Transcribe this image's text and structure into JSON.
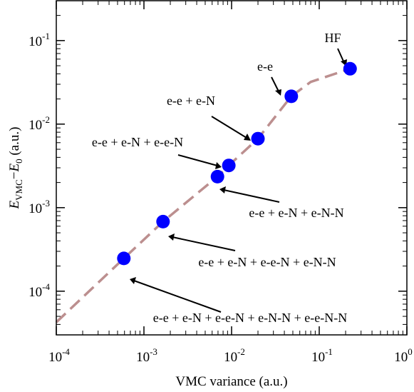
{
  "colors": {
    "marker": "#0000ff",
    "trend": "#bc8f8f",
    "axis": "#000000",
    "background": "#ffffff"
  },
  "chart_data": {
    "type": "scatter",
    "title": "",
    "xlabel": "VMC variance (a.u.)",
    "ylabel": {
      "main": "E",
      "main_sub": "VMC",
      "minus": "−",
      "second": "E",
      "second_sub": "0",
      "units": " (a.u.)"
    },
    "x_scale": "log",
    "y_scale": "log",
    "xlim": [
      0.0001,
      1
    ],
    "ylim": [
      3e-05,
      0.3
    ],
    "grid": false,
    "legend": "none",
    "x_ticks": [
      {
        "base": "10",
        "exp": "-4",
        "value": 0.0001
      },
      {
        "base": "10",
        "exp": "-3",
        "value": 0.001
      },
      {
        "base": "10",
        "exp": "-2",
        "value": 0.01
      },
      {
        "base": "10",
        "exp": "-1",
        "value": 0.1
      },
      {
        "base": "10",
        "exp": "0",
        "value": 1
      }
    ],
    "y_ticks": [
      {
        "base": "10",
        "exp": "-4",
        "value": 0.0001
      },
      {
        "base": "10",
        "exp": "-3",
        "value": 0.001
      },
      {
        "base": "10",
        "exp": "-2",
        "value": 0.01
      },
      {
        "base": "10",
        "exp": "-1",
        "value": 0.1
      }
    ],
    "points": [
      {
        "x": 0.00059,
        "y": 0.000247,
        "label": "e-e + e-N + e-e-N + e-N-N + e-e-N-N"
      },
      {
        "x": 0.00165,
        "y": 0.00068,
        "label": "e-e + e-N + e-e-N + e-N-N"
      },
      {
        "x": 0.0069,
        "y": 0.00235,
        "label": "e-e + e-N + e-N-N"
      },
      {
        "x": 0.0093,
        "y": 0.0032,
        "label": "e-e + e-N + e-e-N"
      },
      {
        "x": 0.02,
        "y": 0.0067,
        "label": "e-e + e-N"
      },
      {
        "x": 0.048,
        "y": 0.0215,
        "label": "e-e"
      },
      {
        "x": 0.225,
        "y": 0.046,
        "label": "HF"
      }
    ],
    "trend_line": {
      "style": "dashed",
      "points": [
        {
          "x": 0.0001,
          "y": 4.25e-05
        },
        {
          "x": 0.00059,
          "y": 0.000247
        },
        {
          "x": 0.00165,
          "y": 0.00068
        },
        {
          "x": 0.0069,
          "y": 0.00235
        },
        {
          "x": 0.0093,
          "y": 0.0032
        },
        {
          "x": 0.02,
          "y": 0.0067
        },
        {
          "x": 0.048,
          "y": 0.0215
        },
        {
          "x": 0.08,
          "y": 0.032
        },
        {
          "x": 0.225,
          "y": 0.046
        }
      ]
    }
  }
}
